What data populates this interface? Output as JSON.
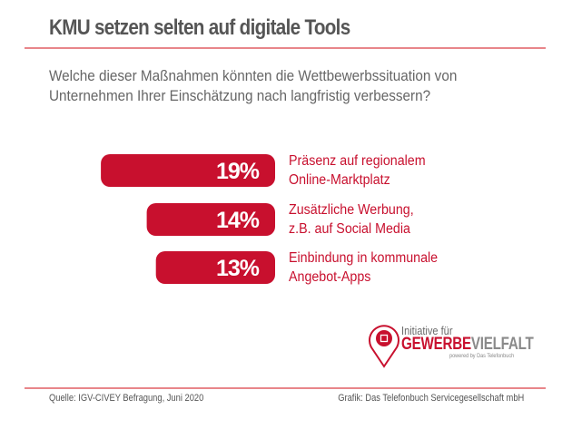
{
  "header": {
    "title": "KMU setzen selten auf digitale Tools"
  },
  "question": {
    "line1": "Welche dieser Maßnahmen könnten die Wettbewerbssituation von",
    "line2": "Unternehmen Ihrer Einschätzung nach langfristig verbessern?"
  },
  "chart_data": {
    "type": "bar",
    "orientation": "horizontal",
    "title": "KMU setzen selten auf digitale Tools",
    "subtitle": "Welche dieser Maßnahmen könnten die Wettbewerbssituation von Unternehmen Ihrer Einschätzung nach langfristig verbessern?",
    "xlabel": "",
    "ylabel": "",
    "unit": "%",
    "grid": false,
    "categories": [
      [
        "Präsenz auf regionalem",
        "Online-Marktplatz"
      ],
      [
        "Zusätzliche Werbung,",
        "z.B. auf Social Media"
      ],
      [
        "Einbindung in kommunale",
        "Angebot-Apps"
      ]
    ],
    "values": [
      19,
      14,
      13
    ],
    "value_labels": [
      "19%",
      "14%",
      "13%"
    ],
    "bar_color": "#c8102e",
    "label_color": "#c8102e"
  },
  "logo": {
    "line1": "Initiative für",
    "brand_part1": "GEWERBE",
    "brand_part2": "VIELFALT",
    "tagline": "powered by Das Telefonbuch"
  },
  "footer": {
    "source": "Quelle: IGV-CIVEY Befragung, Juni 2020",
    "credit": "Grafik: Das Telefonbuch Servicegesellschaft mbH"
  }
}
